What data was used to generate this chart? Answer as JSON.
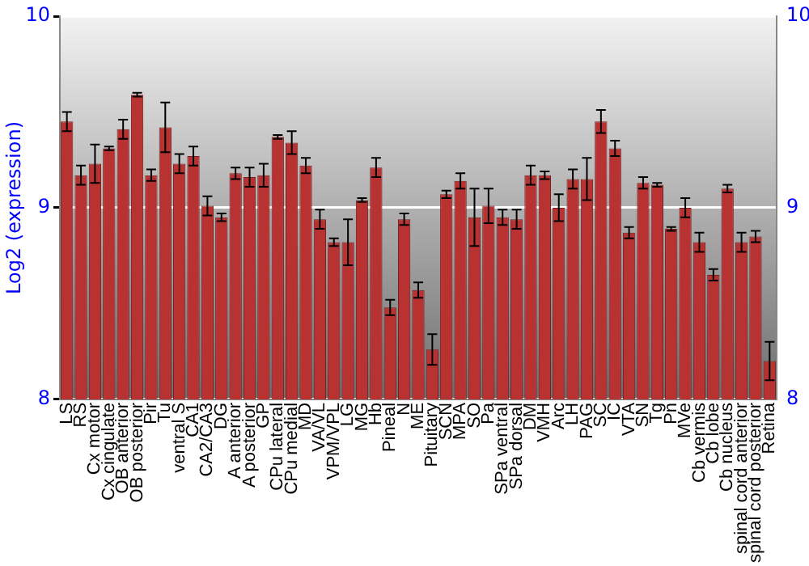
{
  "chart_data": {
    "type": "bar",
    "ylabel": "Log2 (expression)",
    "categories": [
      "LS",
      "RS",
      "Cx motor",
      "Cx cingulate",
      "OB anterior",
      "OB posterior",
      "Pir",
      "Tu",
      "ventral S",
      "CA1",
      "CA2/CA3",
      "DG",
      "A anterior",
      "A posterior",
      "GP",
      "CPu lateral",
      "CPu medial",
      "MD",
      "VA/VL",
      "VPM/VPL",
      "LG",
      "MG",
      "Hb",
      "Pineal",
      "N",
      "ME",
      "Pituitary",
      "SCN",
      "MPA",
      "SO",
      "Pa",
      "SPa ventral",
      "SPa dorsal",
      "DM",
      "VMH",
      "Arc",
      "LH",
      "PAG",
      "SC",
      "IC",
      "VTA",
      "SN",
      "Tg",
      "Pn",
      "MVe",
      "Cb vermis",
      "Cb lobe",
      "Cb nucleus",
      "spinal cord anterior",
      "spinal cord posterior",
      "Retina"
    ],
    "values": [
      9.45,
      9.17,
      9.23,
      9.31,
      9.41,
      9.59,
      9.17,
      9.42,
      9.23,
      9.27,
      9.01,
      8.95,
      9.18,
      9.16,
      9.17,
      9.37,
      9.34,
      9.22,
      8.94,
      8.82,
      8.82,
      9.04,
      9.21,
      8.48,
      8.94,
      8.57,
      8.26,
      9.07,
      9.14,
      8.95,
      9.01,
      8.95,
      8.94,
      9.17,
      9.17,
      9.0,
      9.15,
      9.15,
      9.45,
      9.31,
      8.87,
      9.13,
      9.12,
      8.89,
      9.0,
      8.82,
      8.65,
      9.1,
      8.82,
      8.85,
      8.2
    ],
    "errors": [
      0.05,
      0.05,
      0.1,
      0.01,
      0.05,
      0.01,
      0.03,
      0.13,
      0.05,
      0.05,
      0.05,
      0.02,
      0.03,
      0.05,
      0.06,
      0.01,
      0.06,
      0.04,
      0.05,
      0.02,
      0.12,
      0.01,
      0.05,
      0.04,
      0.03,
      0.04,
      0.08,
      0.02,
      0.04,
      0.15,
      0.09,
      0.04,
      0.05,
      0.05,
      0.02,
      0.07,
      0.05,
      0.11,
      0.06,
      0.04,
      0.03,
      0.03,
      0.01,
      0.01,
      0.05,
      0.05,
      0.03,
      0.02,
      0.05,
      0.03,
      0.1
    ],
    "color": "#b83232",
    "ylim": [
      8,
      10
    ],
    "yticks": [
      8,
      9,
      10
    ],
    "y2lim": [
      8,
      10
    ],
    "y2ticks": [
      8,
      9,
      10
    ],
    "grid": "y",
    "legend": false
  }
}
